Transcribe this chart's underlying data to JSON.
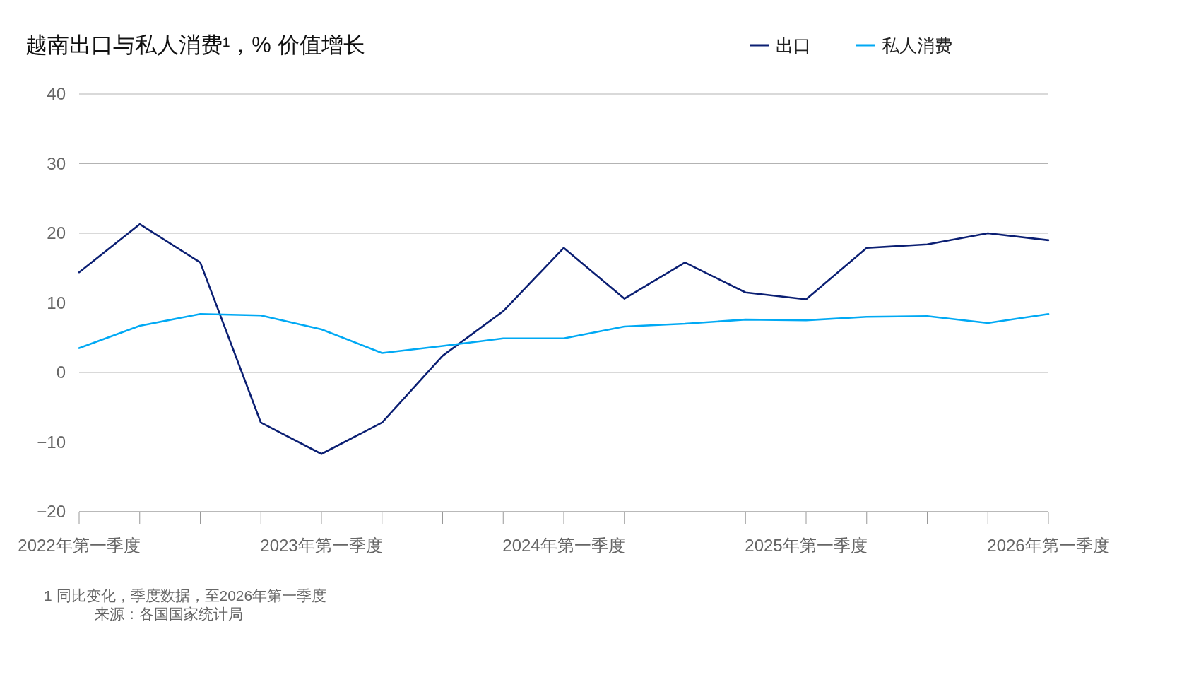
{
  "chart_data": {
    "type": "line",
    "title": "越南出口与私人消费¹，% 价值增长",
    "categories": [
      "2022年第一季度",
      null,
      null,
      null,
      "2023年第一季度",
      null,
      null,
      null,
      "2024年第一季度",
      null,
      null,
      null,
      "2025年第一季度",
      null,
      null,
      null,
      "2026年第一季度"
    ],
    "series": [
      {
        "name": "出口",
        "color": "#0b1f73",
        "values": [
          14.4,
          21.3,
          15.8,
          -7.2,
          -11.7,
          -7.2,
          2.4,
          8.8,
          17.9,
          10.6,
          15.8,
          11.5,
          10.5,
          17.9,
          18.4,
          20.0,
          19.0
        ]
      },
      {
        "name": "私人消费",
        "color": "#00a9f4",
        "values": [
          3.5,
          6.7,
          8.4,
          8.2,
          6.2,
          2.8,
          3.8,
          4.9,
          4.9,
          6.6,
          7.0,
          7.6,
          7.5,
          8.0,
          8.1,
          7.1,
          8.4
        ]
      }
    ],
    "ylim": [
      -20,
      40
    ],
    "yticks": [
      {
        "value": -20,
        "label": "−20"
      },
      {
        "value": -10,
        "label": "−10"
      },
      0,
      10,
      20,
      30,
      40
    ],
    "grid": "y",
    "legend": "top right",
    "marker": "none",
    "line_style": "solid",
    "annotations": [
      "1 同比变化，季度数据，至2026年第一季度",
      "来源：各国国家统计局"
    ]
  }
}
